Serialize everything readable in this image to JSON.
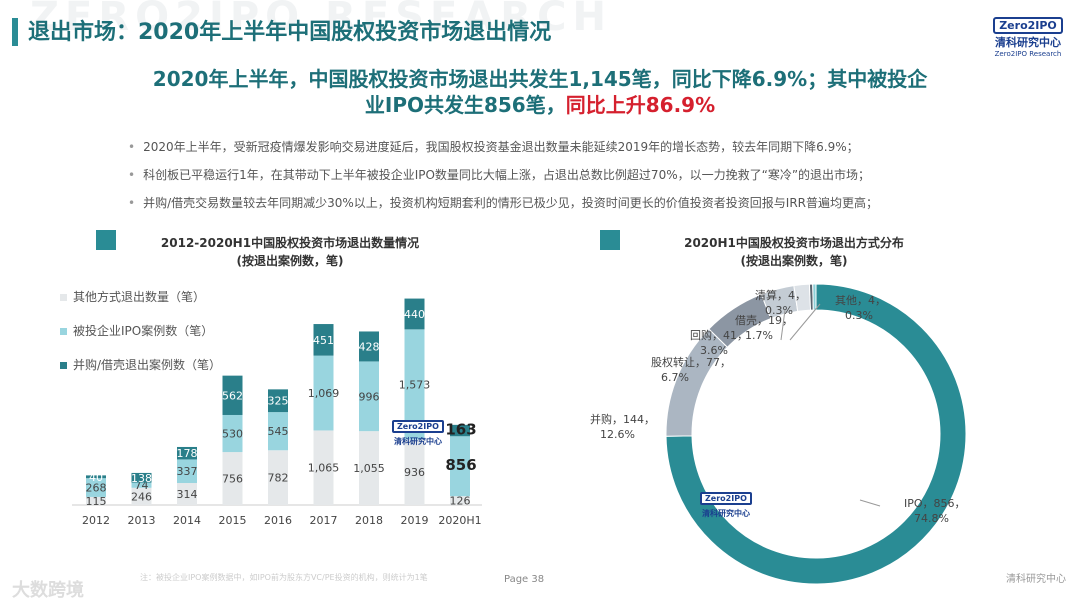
{
  "watermark": "ZERO2IPO RESEARCH",
  "title": "退出市场：2020年上半年中国股权投资市场退出情况",
  "logo": {
    "box": "Zero2IPO",
    "cn": "清科研究中心",
    "en": "Zero2IPO Research"
  },
  "headline": {
    "line1": "2020年上半年，中国股权投资市场退出共发生1,145笔，同比下降6.9%；其中被投企",
    "line2_normal": "业IPO共发生856笔，",
    "line2_red": "同比上升86.9%"
  },
  "bullets": [
    "2020年上半年，受新冠疫情爆发影响交易进度延后，我国股权投资基金退出数量未能延续2019年的增长态势，较去年同期下降6.9%；",
    "科创板已平稳运行1年，在其带动下上半年被投企业IPO数量同比大幅上涨，占退出总数比例超过70%，以一力挽救了“寒冷”的退出市场；",
    "并购/借壳交易数量较去年同期减少30%以上，投资机构短期套利的情形已极少见，投资时间更长的价值投资者投资回报与IRR普遍均更高；"
  ],
  "chart_data": [
    {
      "type": "bar",
      "stacked": true,
      "title": "2012-2020H1中国股权投资市场退出数量情况",
      "subtitle": "(按退出案例数，笔)",
      "categories": [
        "2012",
        "2013",
        "2014",
        "2015",
        "2016",
        "2017",
        "2018",
        "2019",
        "2020H1"
      ],
      "series": [
        {
          "name": "其他方式退出数量（笔）",
          "values": [
            115,
            246,
            314,
            756,
            782,
            1065,
            1055,
            936,
            126
          ],
          "color": "#e5e8ea"
        },
        {
          "name": "被投企业IPO案例数（笔）",
          "values": [
            268,
            74,
            337,
            530,
            545,
            1069,
            996,
            1573,
            856
          ],
          "color": "#99d5df"
        },
        {
          "name": "并购/借壳退出案例数（笔）",
          "values": [
            40,
            138,
            178,
            562,
            325,
            451,
            428,
            440,
            163
          ],
          "color": "#2a7f8a"
        }
      ],
      "ymax": 3000
    },
    {
      "type": "pie",
      "donut": true,
      "title": "2020H1中国股权投资市场退出方式分布",
      "subtitle": "(按退出案例数，笔)",
      "slices": [
        {
          "name": "IPO",
          "value": 856,
          "pct": "74.8%",
          "color": "#2a8c95"
        },
        {
          "name": "并购",
          "value": 144,
          "pct": "12.6%",
          "color": "#abb6c2"
        },
        {
          "name": "股权转让",
          "value": 77,
          "pct": "6.7%",
          "color": "#8c96a3"
        },
        {
          "name": "回购",
          "value": 41,
          "pct": "3.6%",
          "color": "#c4ccd4"
        },
        {
          "name": "借壳",
          "value": 19,
          "pct": "1.7%",
          "color": "#dde2e7"
        },
        {
          "name": "清算",
          "value": 4,
          "pct": "0.3%",
          "color": "#5a646e"
        },
        {
          "name": "其他",
          "value": 4,
          "pct": "0.3%",
          "color": "#8fd0d8"
        }
      ]
    }
  ],
  "footer": {
    "note": "注：被投企业IPO案例数据中，如IPO前为股东方VC/PE投资的机构，则统计为1笔",
    "page_label": "Page",
    "page_num": "38",
    "logo": "清科研究中心",
    "source_wm": "大数跨境"
  }
}
